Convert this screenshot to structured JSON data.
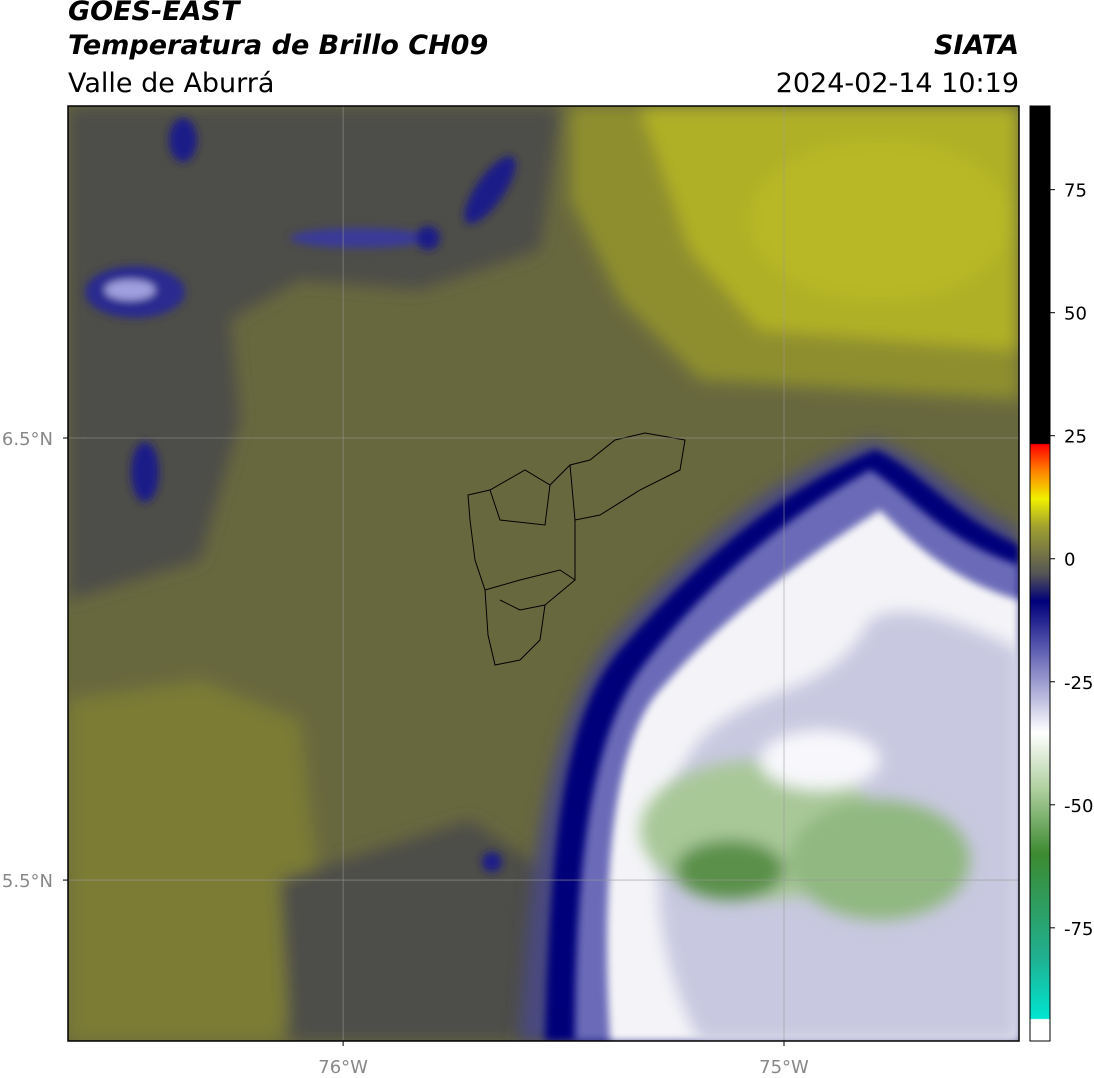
{
  "header": {
    "title": "GOES-EAST",
    "subtitle": "Temperatura de Brillo CH09",
    "region": "Valle de Aburrá",
    "source": "SIATA",
    "timestamp": "2024-02-14 10:19"
  },
  "map": {
    "lon_range": [
      -76.624,
      -74.467
    ],
    "lat_range": [
      5.136,
      7.251
    ],
    "lon_ticks": [
      {
        "value": -76,
        "label": "76°W"
      },
      {
        "value": -75,
        "label": "75°W"
      }
    ],
    "lat_ticks": [
      {
        "value": 6.5,
        "label": "6.5°N"
      },
      {
        "value": 5.5,
        "label": "5.5°N"
      }
    ]
  },
  "colorbar": {
    "range": [
      -98,
      92
    ],
    "ticks": [
      75,
      50,
      25,
      0,
      -25,
      -50,
      -75
    ]
  }
}
